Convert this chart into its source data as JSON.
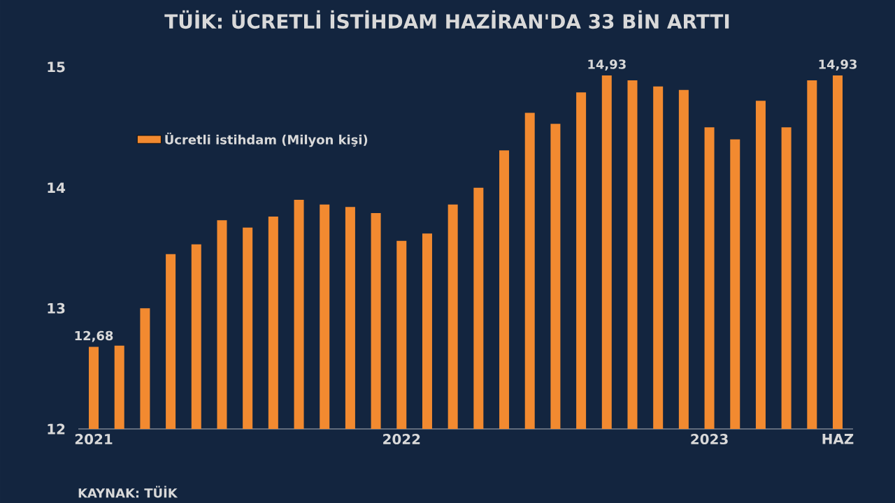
{
  "chart_data": {
    "type": "bar",
    "title": "TÜİK: ÜCRETLİ İSTİHDAM HAZİRAN'DA 33 BİN ARTTI",
    "categories": [
      "2021",
      null,
      null,
      null,
      null,
      null,
      null,
      null,
      null,
      null,
      null,
      null,
      "2022",
      null,
      null,
      null,
      null,
      null,
      null,
      null,
      null,
      null,
      null,
      null,
      "2023",
      null,
      null,
      null,
      null,
      "HAZ"
    ],
    "series": [
      {
        "name": "Ücretli istihdam (Milyon kişi)",
        "color": "#f28a30",
        "values": [
          12.68,
          12.69,
          13.0,
          13.45,
          13.53,
          13.73,
          13.67,
          13.76,
          13.9,
          13.86,
          13.84,
          13.79,
          13.56,
          13.62,
          13.86,
          14.0,
          14.31,
          14.62,
          14.53,
          14.79,
          14.93,
          14.89,
          14.84,
          14.81,
          14.5,
          14.4,
          14.72,
          14.5,
          14.89,
          14.93
        ],
        "value_labels": [
          "12,68",
          null,
          null,
          null,
          null,
          null,
          null,
          null,
          null,
          null,
          null,
          null,
          null,
          null,
          null,
          null,
          null,
          null,
          null,
          null,
          "14,93",
          null,
          null,
          null,
          null,
          null,
          null,
          null,
          null,
          "14,93"
        ]
      }
    ],
    "ylim": [
      12,
      15
    ],
    "yticks": [
      12,
      13,
      14,
      15
    ],
    "legend": "top left",
    "annotations": [
      "KAYNAK: TÜİK"
    ]
  }
}
